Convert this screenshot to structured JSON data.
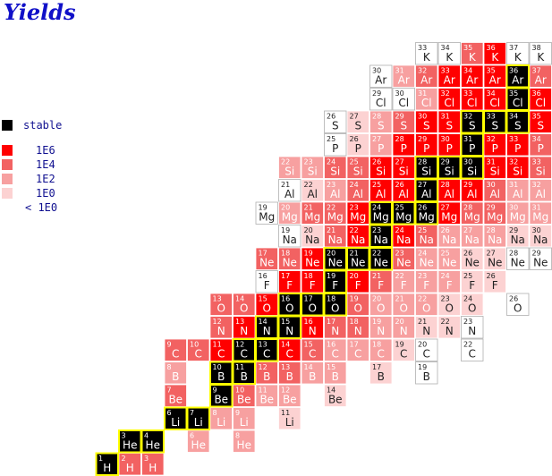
{
  "title": "Yields",
  "legend": [
    {
      "label": "stable",
      "color": "#000000"
    },
    {
      "label": "1E6",
      "color": "#ff0000"
    },
    {
      "label": "1E4",
      "color": "#f26262"
    },
    {
      "label": "1E2",
      "color": "#f7a0a0"
    },
    {
      "label": "1E0",
      "color": "#fcd2d2"
    },
    {
      "label": "< 1E0",
      "color": "#ffffff"
    }
  ],
  "elements": [
    {
      "symbol": "H",
      "cells": [
        [
          1,
          "stable"
        ],
        [
          2,
          "1E4"
        ],
        [
          3,
          "1E4"
        ]
      ]
    },
    {
      "symbol": "He",
      "cells": [
        [
          3,
          "stable"
        ],
        [
          4,
          "stable"
        ],
        [
          6,
          "1E2"
        ],
        [
          8,
          "1E2"
        ]
      ]
    },
    {
      "symbol": "Li",
      "cells": [
        [
          6,
          "stable"
        ],
        [
          7,
          "stable"
        ],
        [
          8,
          "1E2"
        ],
        [
          9,
          "1E2"
        ],
        [
          11,
          "1E0"
        ]
      ]
    },
    {
      "symbol": "Be",
      "cells": [
        [
          7,
          "1E4"
        ],
        [
          9,
          "stable"
        ],
        [
          10,
          "1E4"
        ],
        [
          11,
          "1E2"
        ],
        [
          12,
          "1E2"
        ],
        [
          14,
          "1E0"
        ]
      ]
    },
    {
      "symbol": "B",
      "cells": [
        [
          8,
          "1E2"
        ],
        [
          10,
          "stable"
        ],
        [
          11,
          "stable"
        ],
        [
          12,
          "1E4"
        ],
        [
          13,
          "1E4"
        ],
        [
          14,
          "1E2"
        ],
        [
          15,
          "1E2"
        ],
        [
          17,
          "1E0"
        ],
        [
          19,
          "< 1E0"
        ]
      ]
    },
    {
      "symbol": "C",
      "cells": [
        [
          9,
          "1E4"
        ],
        [
          10,
          "1E4"
        ],
        [
          11,
          "1E6"
        ],
        [
          12,
          "stable"
        ],
        [
          13,
          "stable"
        ],
        [
          14,
          "1E6"
        ],
        [
          15,
          "1E4"
        ],
        [
          16,
          "1E2"
        ],
        [
          17,
          "1E2"
        ],
        [
          18,
          "1E2"
        ],
        [
          19,
          "1E0"
        ],
        [
          20,
          "< 1E0"
        ],
        [
          22,
          "< 1E0"
        ]
      ]
    },
    {
      "symbol": "N",
      "cells": [
        [
          12,
          "1E4"
        ],
        [
          13,
          "1E6"
        ],
        [
          14,
          "stable"
        ],
        [
          15,
          "stable"
        ],
        [
          16,
          "1E6"
        ],
        [
          17,
          "1E4"
        ],
        [
          18,
          "1E4"
        ],
        [
          19,
          "1E2"
        ],
        [
          20,
          "1E2"
        ],
        [
          21,
          "1E0"
        ],
        [
          22,
          "1E0"
        ],
        [
          23,
          "< 1E0"
        ]
      ]
    },
    {
      "symbol": "O",
      "cells": [
        [
          13,
          "1E4"
        ],
        [
          14,
          "1E4"
        ],
        [
          15,
          "1E6"
        ],
        [
          16,
          "stable"
        ],
        [
          17,
          "stable"
        ],
        [
          18,
          "stable"
        ],
        [
          19,
          "1E4"
        ],
        [
          20,
          "1E2"
        ],
        [
          21,
          "1E2"
        ],
        [
          22,
          "1E2"
        ],
        [
          23,
          "1E0"
        ],
        [
          24,
          "1E0"
        ],
        [
          26,
          "< 1E0"
        ]
      ]
    },
    {
      "symbol": "F",
      "cells": [
        [
          16,
          "< 1E0"
        ],
        [
          17,
          "1E6"
        ],
        [
          18,
          "1E6"
        ],
        [
          19,
          "stable"
        ],
        [
          20,
          "1E6"
        ],
        [
          21,
          "1E4"
        ],
        [
          22,
          "1E2"
        ],
        [
          23,
          "1E2"
        ],
        [
          24,
          "1E2"
        ],
        [
          25,
          "1E0"
        ],
        [
          26,
          "1E0"
        ]
      ]
    },
    {
      "symbol": "Ne",
      "cells": [
        [
          17,
          "1E4"
        ],
        [
          18,
          "1E4"
        ],
        [
          19,
          "1E6"
        ],
        [
          20,
          "stable"
        ],
        [
          21,
          "stable"
        ],
        [
          22,
          "stable"
        ],
        [
          23,
          "1E4"
        ],
        [
          24,
          "1E2"
        ],
        [
          25,
          "1E2"
        ],
        [
          26,
          "1E0"
        ],
        [
          27,
          "1E0"
        ],
        [
          28,
          "< 1E0"
        ],
        [
          29,
          "< 1E0"
        ]
      ]
    },
    {
      "symbol": "Na",
      "cells": [
        [
          19,
          "< 1E0"
        ],
        [
          20,
          "1E0"
        ],
        [
          21,
          "1E4"
        ],
        [
          22,
          "1E6"
        ],
        [
          23,
          "stable"
        ],
        [
          24,
          "1E6"
        ],
        [
          25,
          "1E4"
        ],
        [
          26,
          "1E2"
        ],
        [
          27,
          "1E2"
        ],
        [
          28,
          "1E2"
        ],
        [
          29,
          "1E0"
        ],
        [
          30,
          "1E0"
        ]
      ]
    },
    {
      "symbol": "Mg",
      "cells": [
        [
          19,
          "< 1E0"
        ],
        [
          20,
          "1E2"
        ],
        [
          21,
          "1E4"
        ],
        [
          22,
          "1E4"
        ],
        [
          23,
          "1E6"
        ],
        [
          24,
          "stable"
        ],
        [
          25,
          "stable"
        ],
        [
          26,
          "stable"
        ],
        [
          27,
          "1E6"
        ],
        [
          28,
          "1E4"
        ],
        [
          29,
          "1E4"
        ],
        [
          30,
          "1E2"
        ],
        [
          31,
          "1E2"
        ]
      ]
    },
    {
      "symbol": "Al",
      "cells": [
        [
          21,
          "< 1E0"
        ],
        [
          22,
          "1E0"
        ],
        [
          23,
          "1E2"
        ],
        [
          24,
          "1E4"
        ],
        [
          25,
          "1E6"
        ],
        [
          26,
          "1E6"
        ],
        [
          27,
          "stable"
        ],
        [
          28,
          "1E6"
        ],
        [
          29,
          "1E6"
        ],
        [
          30,
          "1E4"
        ],
        [
          31,
          "1E2"
        ],
        [
          32,
          "1E2"
        ]
      ]
    },
    {
      "symbol": "Si",
      "cells": [
        [
          22,
          "1E2"
        ],
        [
          23,
          "1E2"
        ],
        [
          24,
          "1E4"
        ],
        [
          25,
          "1E4"
        ],
        [
          26,
          "1E6"
        ],
        [
          27,
          "1E6"
        ],
        [
          28,
          "stable"
        ],
        [
          29,
          "stable"
        ],
        [
          30,
          "stable"
        ],
        [
          31,
          "1E6"
        ],
        [
          32,
          "1E6"
        ],
        [
          33,
          "1E4"
        ]
      ]
    },
    {
      "symbol": "P",
      "cells": [
        [
          25,
          "< 1E0"
        ],
        [
          26,
          "1E0"
        ],
        [
          27,
          "1E2"
        ],
        [
          28,
          "1E6"
        ],
        [
          29,
          "1E6"
        ],
        [
          30,
          "1E6"
        ],
        [
          31,
          "stable"
        ],
        [
          32,
          "1E6"
        ],
        [
          33,
          "1E6"
        ],
        [
          34,
          "1E4"
        ]
      ]
    },
    {
      "symbol": "S",
      "cells": [
        [
          26,
          "< 1E0"
        ],
        [
          27,
          "1E0"
        ],
        [
          28,
          "1E2"
        ],
        [
          29,
          "1E4"
        ],
        [
          30,
          "1E6"
        ],
        [
          31,
          "1E6"
        ],
        [
          32,
          "stable"
        ],
        [
          33,
          "stable"
        ],
        [
          34,
          "stable"
        ],
        [
          35,
          "1E6"
        ]
      ]
    },
    {
      "symbol": "Cl",
      "cells": [
        [
          29,
          "< 1E0"
        ],
        [
          30,
          "< 1E0"
        ],
        [
          31,
          "1E2"
        ],
        [
          32,
          "1E6"
        ],
        [
          33,
          "1E6"
        ],
        [
          34,
          "1E6"
        ],
        [
          35,
          "stable"
        ],
        [
          36,
          "1E6"
        ]
      ]
    },
    {
      "symbol": "Ar",
      "cells": [
        [
          30,
          "< 1E0"
        ],
        [
          31,
          "1E2"
        ],
        [
          32,
          "1E4"
        ],
        [
          33,
          "1E6"
        ],
        [
          34,
          "1E6"
        ],
        [
          35,
          "1E6"
        ],
        [
          36,
          "stable"
        ],
        [
          37,
          "1E4"
        ]
      ]
    },
    {
      "symbol": "K",
      "cells": [
        [
          33,
          "< 1E0"
        ],
        [
          34,
          "< 1E0"
        ],
        [
          35,
          "1E4"
        ],
        [
          36,
          "1E6"
        ],
        [
          37,
          "< 1E0"
        ],
        [
          38,
          "< 1E0"
        ]
      ]
    }
  ]
}
